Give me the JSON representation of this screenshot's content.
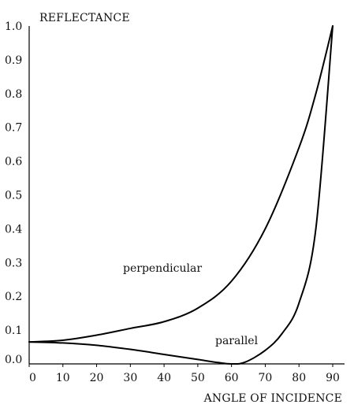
{
  "chart_data": {
    "type": "line",
    "xlabel": "ANGLE OF INCIDENCE",
    "ylabel": "REFLECTANCE",
    "xlim": [
      0,
      90
    ],
    "ylim": [
      0,
      1.0
    ],
    "x_ticks": [
      "0",
      "10",
      "20",
      "30",
      "40",
      "50",
      "60",
      "70",
      "80",
      "90"
    ],
    "y_ticks": [
      "0.0",
      "0.1",
      "0.2",
      "0.3",
      "0.4",
      "0.5",
      "0.6",
      "0.7",
      "0.8",
      "0.9",
      "1.0"
    ],
    "grid": false,
    "legend": "none",
    "series": [
      {
        "name": "perpendicular",
        "color": "#000000",
        "x": [
          0,
          10,
          20,
          30,
          40,
          50,
          60,
          70,
          80,
          85,
          90
        ],
        "y": [
          0.065,
          0.07,
          0.085,
          0.105,
          0.125,
          0.165,
          0.245,
          0.4,
          0.64,
          0.8,
          1.0
        ]
      },
      {
        "name": "parallel",
        "color": "#000000",
        "x": [
          0,
          10,
          20,
          30,
          40,
          50,
          56,
          60,
          64,
          70,
          75,
          80,
          85,
          90
        ],
        "y": [
          0.065,
          0.062,
          0.055,
          0.043,
          0.028,
          0.013,
          0.004,
          0.0,
          0.005,
          0.04,
          0.09,
          0.18,
          0.4,
          1.0
        ]
      }
    ]
  }
}
